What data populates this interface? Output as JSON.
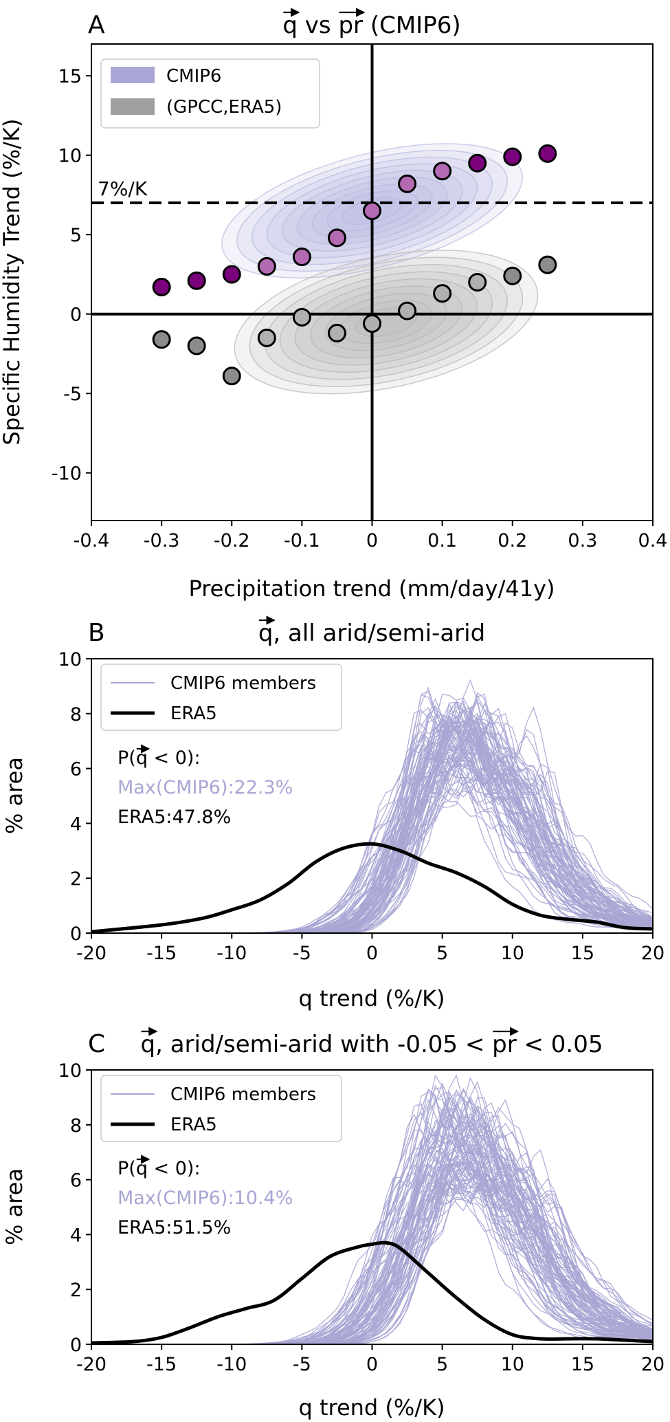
{
  "chart_data": [
    {
      "type": "scatter",
      "panel_letter": "A",
      "title": "q vs pr (CMIP6)",
      "title_parts": {
        "q": "q",
        "mid": " vs ",
        "pr": "pr",
        "suffix": " (CMIP6)"
      },
      "xlabel": "Precipitation trend (mm/day/41y)",
      "ylabel": "Specific Humidity Trend (%/K)",
      "xlim": [
        -0.4,
        0.4
      ],
      "ylim": [
        -13,
        17
      ],
      "xticks": [
        -0.4,
        -0.3,
        -0.2,
        -0.1,
        0,
        0.1,
        0.2,
        0.3,
        0.4
      ],
      "xtick_labels": [
        "-0.4",
        "-0.3",
        "-0.2",
        "-0.1",
        "0",
        "0.1",
        "0.2",
        "0.3",
        "0.4"
      ],
      "yticks": [
        -10,
        -5,
        0,
        5,
        10,
        15
      ],
      "ytick_labels": [
        "-10",
        "-5",
        "0",
        "5",
        "10",
        "15"
      ],
      "reference_line": {
        "y": 7,
        "label": "7%/K"
      },
      "legend": {
        "placement": "top-left",
        "entries": [
          {
            "label": "CMIP6",
            "color": "#a8a6d4"
          },
          {
            "label": "(GPCC,ERA5)",
            "color": "#a0a0a0"
          }
        ]
      },
      "series": [
        {
          "name": "CMIP6",
          "color": "#7b007b",
          "x": [
            -0.3,
            -0.25,
            -0.2,
            -0.15,
            -0.1,
            -0.05,
            0,
            0.05,
            0.1,
            0.15,
            0.2,
            0.25
          ],
          "y": [
            1.7,
            2.1,
            2.5,
            3.0,
            3.6,
            4.8,
            6.5,
            8.2,
            9.0,
            9.5,
            9.9,
            10.1
          ]
        },
        {
          "name": "(GPCC,ERA5)",
          "color": "#8c8c8c",
          "x": [
            -0.3,
            -0.25,
            -0.2,
            -0.15,
            -0.1,
            -0.05,
            0,
            0.05,
            0.1,
            0.15,
            0.2,
            0.25
          ],
          "y": [
            -1.6,
            -2.0,
            -3.9,
            -1.5,
            -0.2,
            -1.2,
            -0.6,
            0.2,
            1.3,
            2.0,
            2.4,
            3.1
          ]
        }
      ],
      "density_contours": [
        {
          "name": "CMIP6",
          "color": "#b8b8e0",
          "center": [
            0.0,
            6.5
          ],
          "spread": [
            0.22,
            6.5
          ],
          "tilt": 0.55
        },
        {
          "name": "(GPCC,ERA5)",
          "color": "#b5b5b5",
          "center": [
            0.02,
            -0.5
          ],
          "spread": [
            0.22,
            7.5
          ],
          "tilt": 0.45
        }
      ]
    },
    {
      "type": "line",
      "panel_letter": "B",
      "title": "q, all arid/semi-arid",
      "title_parts": {
        "q": "q",
        "rest": ", all arid/semi-arid"
      },
      "xlabel": "q trend (%/K)",
      "ylabel": "% area",
      "xlim": [
        -20,
        20
      ],
      "ylim": [
        0,
        10
      ],
      "xticks": [
        -20,
        -15,
        -10,
        -5,
        0,
        5,
        10,
        15,
        20
      ],
      "xtick_labels": [
        "-20",
        "-15",
        "-10",
        "-5",
        "0",
        "5",
        "10",
        "15",
        "20"
      ],
      "yticks": [
        0,
        2,
        4,
        6,
        8,
        10
      ],
      "ytick_labels": [
        "0",
        "2",
        "4",
        "6",
        "8",
        "10"
      ],
      "legend": {
        "placement": "top-left",
        "entries": [
          {
            "label": "CMIP6 members",
            "color": "#a8a6d4"
          },
          {
            "label": "ERA5",
            "color": "#000000"
          }
        ]
      },
      "annotation": {
        "p_prefix": "P(",
        "q": "q",
        "p_suffix": " < 0):",
        "cmip6": "Max(CMIP6):22.3%",
        "era5": "ERA5:47.8%"
      },
      "members": {
        "name": "CMIP6 members",
        "count": 90,
        "peak_mean": 5.5,
        "peak_height": 7.0,
        "seed": 11
      },
      "series": [
        {
          "name": "ERA5",
          "color": "#000000",
          "x": [
            -20,
            -15,
            -12,
            -10,
            -8,
            -6,
            -4,
            -2,
            0,
            2,
            4,
            6,
            8,
            10,
            12,
            14,
            16,
            18,
            20
          ],
          "y": [
            0.05,
            0.3,
            0.55,
            0.85,
            1.2,
            1.8,
            2.6,
            3.1,
            3.25,
            3.0,
            2.55,
            2.2,
            1.7,
            1.05,
            0.65,
            0.5,
            0.4,
            0.2,
            0.15
          ]
        }
      ]
    },
    {
      "type": "line",
      "panel_letter": "C",
      "title": "q, arid/semi-arid with -0.05 < pr < 0.05",
      "title_parts": {
        "q": "q",
        "mid": ", arid/semi-arid with -0.05 < ",
        "pr": "pr",
        "suffix": " < 0.05"
      },
      "xlabel": "q trend (%/K)",
      "ylabel": "% area",
      "xlim": [
        -20,
        20
      ],
      "ylim": [
        0,
        10
      ],
      "xticks": [
        -20,
        -15,
        -10,
        -5,
        0,
        5,
        10,
        15,
        20
      ],
      "xtick_labels": [
        "-20",
        "-15",
        "-10",
        "-5",
        "0",
        "5",
        "10",
        "15",
        "20"
      ],
      "yticks": [
        0,
        2,
        4,
        6,
        8,
        10
      ],
      "ytick_labels": [
        "0",
        "2",
        "4",
        "6",
        "8",
        "10"
      ],
      "legend": {
        "placement": "top-left",
        "entries": [
          {
            "label": "CMIP6 members",
            "color": "#a8a6d4"
          },
          {
            "label": "ERA5",
            "color": "#000000"
          }
        ]
      },
      "annotation": {
        "p_prefix": "P(",
        "q": "q",
        "p_suffix": " < 0):",
        "cmip6": "Max(CMIP6):10.4%",
        "era5": "ERA5:51.5%"
      },
      "members": {
        "name": "CMIP6 members",
        "count": 90,
        "peak_mean": 5.5,
        "peak_height": 7.5,
        "seed": 29
      },
      "series": [
        {
          "name": "ERA5",
          "color": "#000000",
          "x": [
            -20,
            -17,
            -15,
            -13,
            -11,
            -9,
            -7,
            -5,
            -3,
            -1,
            0,
            1,
            2,
            4,
            6,
            8,
            10,
            12,
            14,
            16,
            18,
            20
          ],
          "y": [
            0.05,
            0.1,
            0.25,
            0.6,
            1.0,
            1.3,
            1.6,
            2.4,
            3.2,
            3.55,
            3.65,
            3.7,
            3.5,
            2.6,
            1.7,
            0.9,
            0.35,
            0.2,
            0.2,
            0.2,
            0.15,
            0.1
          ]
        }
      ]
    }
  ]
}
